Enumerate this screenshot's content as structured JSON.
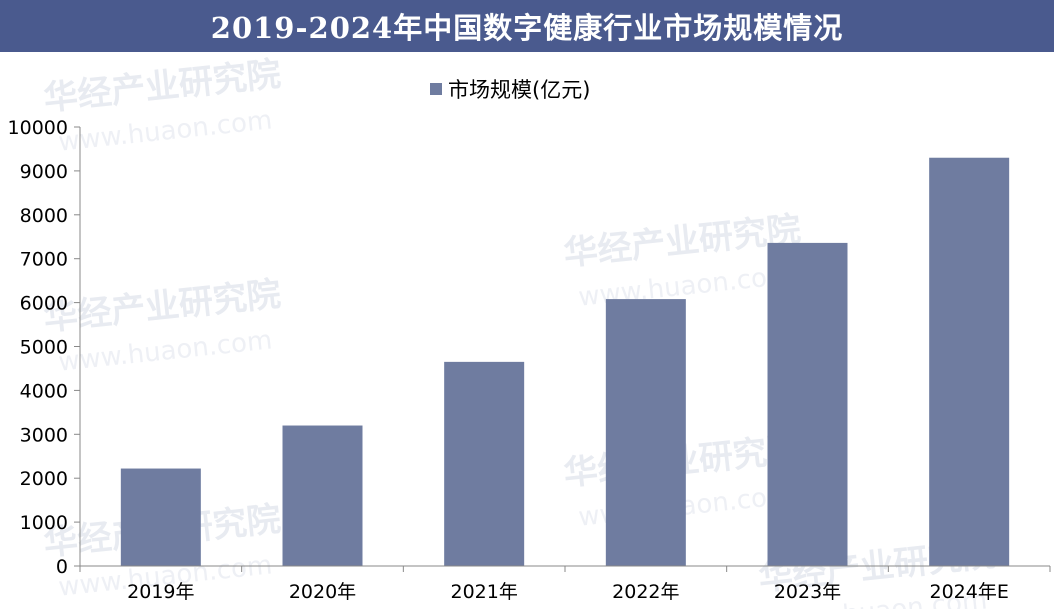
{
  "title": "2019-2024年中国数字健康行业市场规模情况",
  "watermark": {
    "cn": "华经产业研究院",
    "en": "www.huaon.com"
  },
  "colors": {
    "title_bg": "#4a5a8e",
    "bar": "#6f7ca0",
    "axis": "#888888"
  },
  "chart_data": {
    "type": "bar",
    "title": "2019-2024年中国数字健康行业市场规模情况",
    "categories": [
      "2019年",
      "2020年",
      "2021年",
      "2022年",
      "2023年",
      "2024年E"
    ],
    "series": [
      {
        "name": "市场规模(亿元)",
        "values": [
          2220,
          3200,
          4650,
          6080,
          7360,
          9300
        ]
      }
    ],
    "yticks": [
      "0",
      "1000",
      "2000",
      "3000",
      "4000",
      "5000",
      "6000",
      "7000",
      "8000",
      "9000",
      "10000"
    ],
    "ylim": [
      0,
      10000
    ],
    "xlabel": "",
    "ylabel": "",
    "legend": "top-center",
    "grid": false
  }
}
